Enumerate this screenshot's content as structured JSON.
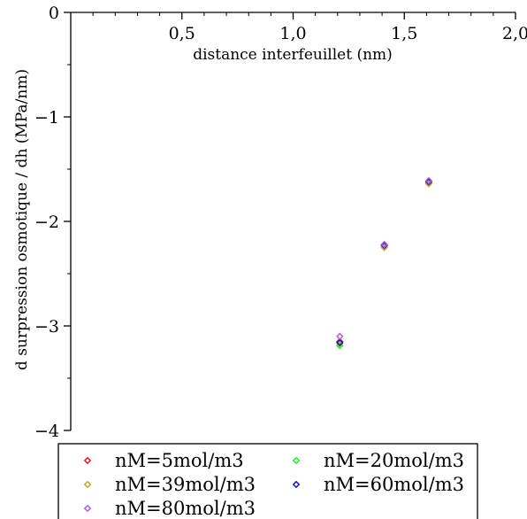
{
  "chart_data": {
    "type": "scatter",
    "title": "",
    "xlabel": "distance interfeuillet (nm)",
    "ylabel": "d surpression osmotique / dh (MPa/nm)",
    "xlim": [
      0,
      2.0
    ],
    "ylim": [
      -4,
      0
    ],
    "x_axis_position": "top",
    "grid": false,
    "x_ticks": [
      {
        "value": 0.5,
        "label": "0,5"
      },
      {
        "value": 1.0,
        "label": "1,0"
      },
      {
        "value": 1.5,
        "label": "1,5"
      },
      {
        "value": 2.0,
        "label": "2,0"
      }
    ],
    "y_ticks": [
      {
        "value": 0,
        "label": "0"
      },
      {
        "value": -1,
        "label": "−1"
      },
      {
        "value": -2,
        "label": "−2"
      },
      {
        "value": -3,
        "label": "−3"
      },
      {
        "value": -4,
        "label": "−4"
      }
    ],
    "legend_position": "bottom",
    "series": [
      {
        "name": "nM=5mol/m3",
        "color": "#e8141e",
        "marker": "diamond",
        "points": [
          [
            1.21,
            -3.15
          ],
          [
            1.41,
            -2.23
          ],
          [
            1.61,
            -1.63
          ]
        ]
      },
      {
        "name": "nM=20mol/m3",
        "color": "#2ee82e",
        "marker": "diamond",
        "points": [
          [
            1.21,
            -3.19
          ],
          [
            1.41,
            -2.23
          ],
          [
            1.61,
            -1.63
          ]
        ]
      },
      {
        "name": "nM=39mol/m3",
        "color": "#d4a020",
        "marker": "diamond",
        "points": [
          [
            1.21,
            -3.17
          ],
          [
            1.41,
            -2.25
          ],
          [
            1.61,
            -1.64
          ]
        ]
      },
      {
        "name": "nM=60mol/m3",
        "color": "#1515d0",
        "marker": "diamond",
        "points": [
          [
            1.21,
            -3.16
          ],
          [
            1.41,
            -2.23
          ],
          [
            1.61,
            -1.62
          ]
        ]
      },
      {
        "name": "nM=80mol/m3",
        "color": "#b060e0",
        "marker": "diamond",
        "points": [
          [
            1.21,
            -3.1
          ],
          [
            1.41,
            -2.22
          ],
          [
            1.61,
            -1.61
          ]
        ]
      }
    ]
  }
}
